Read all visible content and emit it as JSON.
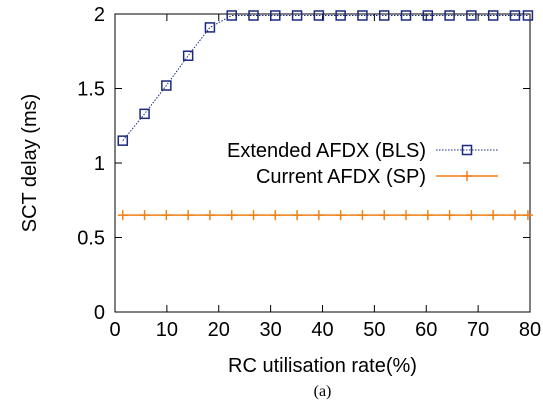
{
  "chart_data": {
    "type": "line",
    "xlabel": "RC utilisation rate(%)",
    "ylabel": "SCT delay (ms)",
    "xlim": [
      0,
      80
    ],
    "ylim": [
      0,
      2
    ],
    "xticks": [
      0,
      10,
      20,
      30,
      40,
      50,
      60,
      70,
      80
    ],
    "yticks": [
      0,
      0.5,
      1,
      1.5,
      2
    ],
    "xtick_labels": [
      "0",
      "10",
      "20",
      "30",
      "40",
      "50",
      "60",
      "70",
      "80"
    ],
    "ytick_labels": [
      "0",
      "0.5",
      "1",
      "1.5",
      "2"
    ],
    "grid": false,
    "legend_position": "center-right",
    "caption": "(a)",
    "series": [
      {
        "name": "Extended AFDX (BLS)",
        "color": "#1a2a80",
        "marker": "square",
        "line_style": "dotted",
        "x": [
          1.5,
          5.7,
          9.9,
          14.1,
          18.3,
          22.5,
          26.7,
          30.9,
          35.1,
          39.3,
          43.5,
          47.7,
          51.9,
          56.1,
          60.3,
          64.5,
          68.7,
          72.9,
          77.1,
          79.6
        ],
        "y": [
          1.15,
          1.33,
          1.52,
          1.72,
          1.91,
          1.99,
          1.99,
          1.99,
          1.99,
          1.99,
          1.99,
          1.99,
          1.99,
          1.99,
          1.99,
          1.99,
          1.99,
          1.99,
          1.99,
          1.99
        ]
      },
      {
        "name": "Current AFDX (SP)",
        "color": "#f07f17",
        "marker": "plus",
        "line_style": "solid",
        "x": [
          1.5,
          5.7,
          9.9,
          14.1,
          18.3,
          22.5,
          26.7,
          30.9,
          35.1,
          39.3,
          43.5,
          47.7,
          51.9,
          56.1,
          60.3,
          64.5,
          68.7,
          72.9,
          77.1,
          79.6
        ],
        "y": [
          0.65,
          0.65,
          0.65,
          0.65,
          0.65,
          0.65,
          0.65,
          0.65,
          0.65,
          0.65,
          0.65,
          0.65,
          0.65,
          0.65,
          0.65,
          0.65,
          0.65,
          0.65,
          0.65,
          0.65
        ]
      }
    ]
  }
}
